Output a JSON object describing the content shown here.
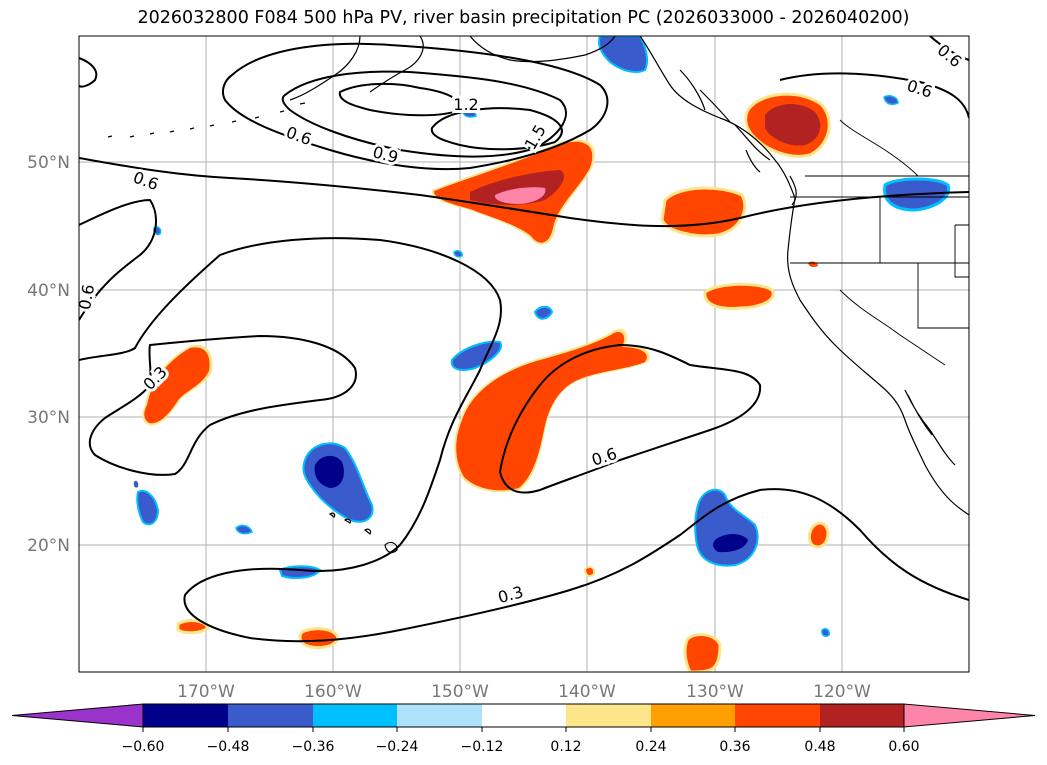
{
  "title": "2026032800 F084 500 hPa PV, river basin precipitation PC (2026033000 - 2026040200)",
  "map": {
    "lat_labels": [
      "50°N",
      "40°N",
      "30°N",
      "20°N"
    ],
    "lon_labels": [
      "170°W",
      "160°W",
      "150°W",
      "140°W",
      "130°W",
      "120°W"
    ],
    "contour_labels": [
      "0.6",
      "0.6",
      "0.9",
      "1.2",
      "1.5",
      "0.6",
      "0.6",
      "0.6",
      "0.3",
      "0.6",
      "0.3"
    ]
  },
  "colorbar": {
    "ticks": [
      "−0.60",
      "−0.48",
      "−0.36",
      "−0.24",
      "−0.12",
      "0.12",
      "0.24",
      "0.36",
      "0.48",
      "0.60"
    ],
    "colors": [
      "#9933cc",
      "#00008b",
      "#3a5bcc",
      "#00bfff",
      "#aee2fa",
      "#ffffff",
      "#fde68a",
      "#ffa000",
      "#ff4500",
      "#b22222",
      "#ff85a8"
    ]
  }
}
